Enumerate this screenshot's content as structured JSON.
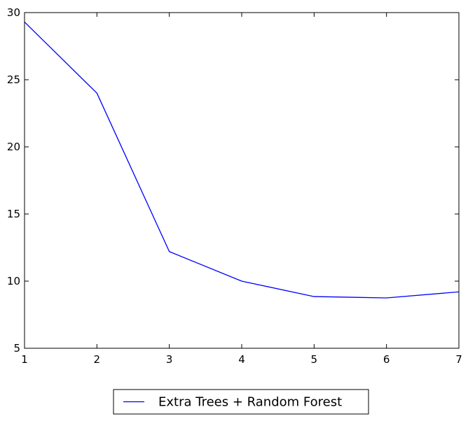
{
  "chart_data": {
    "type": "line",
    "title": "",
    "xlabel": "",
    "ylabel": "",
    "xlim": [
      1,
      7
    ],
    "ylim": [
      5,
      30
    ],
    "xticks": [
      "1",
      "2",
      "3",
      "4",
      "5",
      "6",
      "7"
    ],
    "yticks": [
      "5",
      "10",
      "15",
      "20",
      "25",
      "30"
    ],
    "grid": false,
    "legend_position": "below plot, centered",
    "series": [
      {
        "name": "Extra Trees + Random Forest",
        "color": "#0000ff",
        "x": [
          1,
          2,
          3,
          4,
          5,
          6,
          7
        ],
        "y": [
          29.3,
          24.0,
          12.2,
          10.0,
          8.85,
          8.75,
          9.2
        ]
      }
    ]
  }
}
